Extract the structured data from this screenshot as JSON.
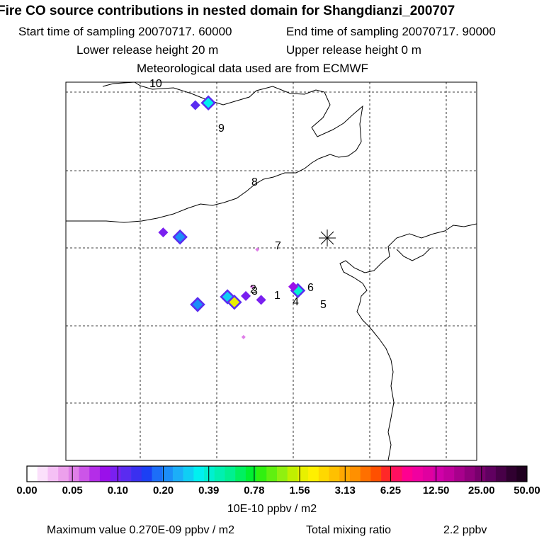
{
  "header": {
    "title": "Fire CO source contributions in nested domain for Shangdianzi_200707",
    "start_time": "Start time of sampling 20070717. 60000",
    "end_time": "End time of sampling 20070717. 90000",
    "lower_release": "Lower release height   20 m",
    "upper_release": "Upper release height    0 m",
    "met_data": "Meteorological data used are from ECMWF"
  },
  "chart_data": {
    "type": "heatmap",
    "subtype": "footprint map",
    "release_site": "Shangdianzi",
    "trajectory_labels": [
      "10",
      "9",
      "8",
      "7",
      "6",
      "5",
      "4",
      "3",
      "2",
      "1"
    ],
    "colorbar": {
      "ticks": [
        "0.00",
        "0.05",
        "0.10",
        "0.20",
        "0.39",
        "0.78",
        "1.56",
        "3.13",
        "6.25",
        "12.50",
        "25.00",
        "50.00"
      ],
      "unit": "10E-10 ppbv / m2",
      "colors": [
        "#ffffff",
        "#fbe0fb",
        "#f5c0f5",
        "#eca0ec",
        "#df7fe8",
        "#cc55e8",
        "#b42de8",
        "#9a10ea",
        "#7a20f0",
        "#5a2cf0",
        "#3a30f0",
        "#1c40f4",
        "#1c6ef8",
        "#1c8ef8",
        "#1caef8",
        "#10cef4",
        "#00f0f0",
        "#00f0d0",
        "#00f0b0",
        "#00f090",
        "#00f060",
        "#00f030",
        "#30f010",
        "#60f010",
        "#90f010",
        "#c0f000",
        "#e8f000",
        "#fff000",
        "#ffd800",
        "#ffc000",
        "#ffa800",
        "#ff9000",
        "#ff7000",
        "#ff5000",
        "#ff2828",
        "#ff1060",
        "#ff0090",
        "#f000a0",
        "#e000a0",
        "#d000a8",
        "#c0009c",
        "#a8008c",
        "#90007c",
        "#78006c",
        "#600060",
        "#480048",
        "#300030",
        "#200020"
      ]
    },
    "hotspots": [
      {
        "lon": 115.72,
        "lat": 41.84,
        "value": 0.13
      },
      {
        "lon": 115.89,
        "lat": 41.87,
        "value": 0.45
      },
      {
        "lon": 115.3,
        "lat": 40.2,
        "value": 0.12
      },
      {
        "lon": 115.52,
        "lat": 40.14,
        "value": 0.25
      },
      {
        "lon": 115.75,
        "lat": 39.27,
        "value": 0.28
      },
      {
        "lon": 116.14,
        "lat": 39.37,
        "value": 0.35
      },
      {
        "lon": 116.23,
        "lat": 39.3,
        "value": 2.7
      },
      {
        "lon": 116.38,
        "lat": 39.38,
        "value": 0.1
      },
      {
        "lon": 116.58,
        "lat": 39.33,
        "value": 0.11
      },
      {
        "lon": 117.06,
        "lat": 39.45,
        "value": 0.55
      },
      {
        "lon": 117.0,
        "lat": 39.5,
        "value": 0.09
      },
      {
        "lon": 116.53,
        "lat": 39.98,
        "value": 0.06
      },
      {
        "lon": 116.46,
        "lat": 39.5,
        "value": 0.05
      },
      {
        "lon": 116.35,
        "lat": 38.85,
        "value": 0.05
      }
    ],
    "grid_lines_dashed": true
  },
  "footer": {
    "max_label": "Maximum value  0.270E-09 ppbv / m2",
    "total_label": "Total mixing ratio",
    "total_value": "2.2 ppbv"
  }
}
